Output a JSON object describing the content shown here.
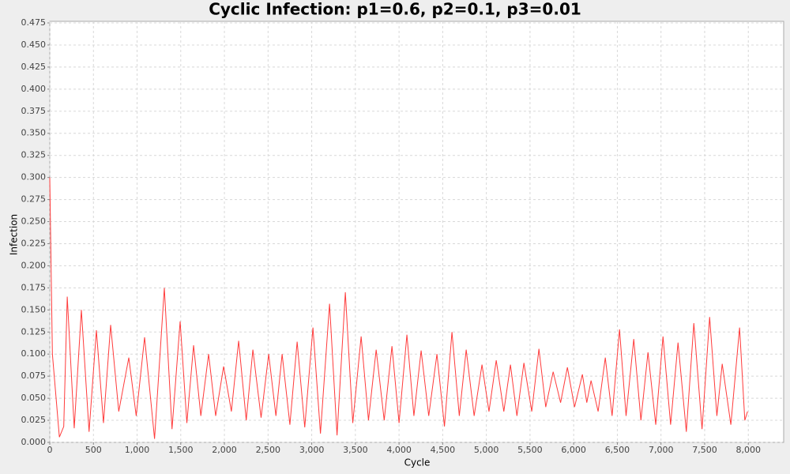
{
  "chart_data": {
    "type": "line",
    "title": "Cyclic Infection: p1=0.6, p2=0.1, p3=0.01",
    "x_label": "Cycle",
    "y_label": "Infection",
    "xlim": [
      0,
      8405
    ],
    "ylim": [
      0,
      0.4768
    ],
    "xticks": [
      0,
      500,
      {
        "value": 1000,
        "label": "1,000"
      },
      {
        "value": 1500,
        "label": "1,500"
      },
      {
        "value": 2000,
        "label": "2,000"
      },
      {
        "value": 2500,
        "label": "2,500"
      },
      {
        "value": 3000,
        "label": "3,000"
      },
      {
        "value": 3500,
        "label": "3,500"
      },
      {
        "value": 4000,
        "label": "4,000"
      },
      {
        "value": 4500,
        "label": "4,500"
      },
      {
        "value": 5000,
        "label": "5,000"
      },
      {
        "value": 5500,
        "label": "5,500"
      },
      {
        "value": 6000,
        "label": "6,000"
      },
      {
        "value": 6500,
        "label": "6,500"
      },
      {
        "value": 7000,
        "label": "7,000"
      },
      {
        "value": 7500,
        "label": "7,500"
      },
      {
        "value": 8000,
        "label": "8,000"
      }
    ],
    "yticks": [
      {
        "value": 0,
        "label": "0.000"
      },
      {
        "value": 0.025,
        "label": "0.025"
      },
      {
        "value": 0.05,
        "label": "0.050"
      },
      {
        "value": 0.075,
        "label": "0.075"
      },
      {
        "value": 0.1,
        "label": "0.100"
      },
      {
        "value": 0.125,
        "label": "0.125"
      },
      {
        "value": 0.15,
        "label": "0.150"
      },
      {
        "value": 0.175,
        "label": "0.175"
      },
      {
        "value": 0.2,
        "label": "0.200"
      },
      {
        "value": 0.225,
        "label": "0.225"
      },
      {
        "value": 0.25,
        "label": "0.250"
      },
      {
        "value": 0.275,
        "label": "0.275"
      },
      {
        "value": 0.3,
        "label": "0.300"
      },
      {
        "value": 0.325,
        "label": "0.325"
      },
      {
        "value": 0.35,
        "label": "0.350"
      },
      {
        "value": 0.375,
        "label": "0.375"
      },
      {
        "value": 0.4,
        "label": "0.400"
      },
      {
        "value": 0.425,
        "label": "0.425"
      },
      {
        "value": 0.45,
        "label": "0.450"
      },
      {
        "value": 0.475,
        "label": "0.475"
      }
    ],
    "grid": true,
    "x": [
      0,
      30,
      110,
      160,
      200,
      280,
      362,
      450,
      534,
      615,
      697,
      790,
      905,
      990,
      1086,
      1200,
      1312,
      1400,
      1493,
      1570,
      1647,
      1730,
      1819,
      1900,
      1991,
      2080,
      2163,
      2250,
      2326,
      2420,
      2507,
      2590,
      2661,
      2750,
      2833,
      2920,
      3014,
      3100,
      3204,
      3290,
      3385,
      3470,
      3566,
      3650,
      3738,
      3830,
      3919,
      4000,
      4090,
      4170,
      4253,
      4340,
      4434,
      4520,
      4606,
      4690,
      4769,
      4860,
      4950,
      5030,
      5113,
      5200,
      5276,
      5350,
      5430,
      5520,
      5602,
      5680,
      5765,
      5850,
      5928,
      6010,
      6100,
      6150,
      6199,
      6280,
      6362,
      6440,
      6525,
      6600,
      6688,
      6770,
      6851,
      6940,
      7023,
      7110,
      7195,
      7290,
      7376,
      7470,
      7557,
      7640,
      7701,
      7800,
      7900,
      7960,
      7991
    ],
    "series": [
      {
        "color": "#ff3b3b",
        "values": [
          0.3,
          0.1,
          0.006,
          0.018,
          0.165,
          0.016,
          0.15,
          0.012,
          0.127,
          0.022,
          0.133,
          0.035,
          0.096,
          0.03,
          0.119,
          0.004,
          0.175,
          0.015,
          0.137,
          0.022,
          0.11,
          0.03,
          0.1,
          0.03,
          0.086,
          0.035,
          0.115,
          0.025,
          0.105,
          0.028,
          0.1,
          0.03,
          0.1,
          0.02,
          0.114,
          0.017,
          0.13,
          0.01,
          0.157,
          0.008,
          0.17,
          0.022,
          0.12,
          0.025,
          0.105,
          0.025,
          0.109,
          0.022,
          0.122,
          0.03,
          0.104,
          0.03,
          0.1,
          0.018,
          0.125,
          0.03,
          0.105,
          0.03,
          0.088,
          0.035,
          0.093,
          0.035,
          0.088,
          0.03,
          0.09,
          0.035,
          0.106,
          0.04,
          0.08,
          0.045,
          0.085,
          0.04,
          0.077,
          0.045,
          0.07,
          0.035,
          0.096,
          0.03,
          0.128,
          0.03,
          0.117,
          0.025,
          0.102,
          0.02,
          0.12,
          0.02,
          0.113,
          0.012,
          0.135,
          0.015,
          0.142,
          0.03,
          0.089,
          0.02,
          0.13,
          0.025,
          0.035
        ]
      }
    ]
  }
}
